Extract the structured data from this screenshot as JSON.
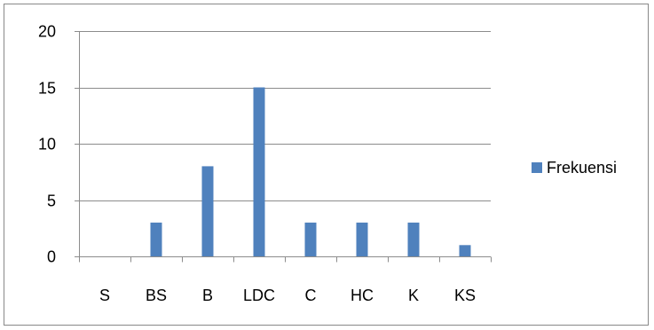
{
  "chart_data": {
    "type": "bar",
    "categories": [
      "S",
      "BS",
      "B",
      "LDC",
      "C",
      "HC",
      "K",
      "KS"
    ],
    "series": [
      {
        "name": "Frekuensi",
        "values": [
          0,
          3,
          8,
          15,
          3,
          3,
          3,
          1
        ],
        "color": "#4F81BD"
      }
    ],
    "ylim": [
      0,
      20
    ],
    "yticks": [
      0,
      5,
      10,
      15,
      20
    ],
    "grid": true,
    "legend_position": "right",
    "title": "",
    "xlabel": "",
    "ylabel": ""
  }
}
